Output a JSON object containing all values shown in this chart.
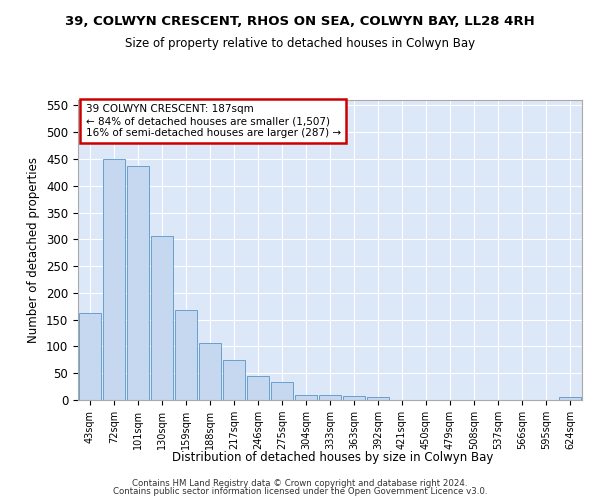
{
  "title": "39, COLWYN CRESCENT, RHOS ON SEA, COLWYN BAY, LL28 4RH",
  "subtitle": "Size of property relative to detached houses in Colwyn Bay",
  "xlabel": "Distribution of detached houses by size in Colwyn Bay",
  "ylabel": "Number of detached properties",
  "categories": [
    "43sqm",
    "72sqm",
    "101sqm",
    "130sqm",
    "159sqm",
    "188sqm",
    "217sqm",
    "246sqm",
    "275sqm",
    "304sqm",
    "333sqm",
    "363sqm",
    "392sqm",
    "421sqm",
    "450sqm",
    "479sqm",
    "508sqm",
    "537sqm",
    "566sqm",
    "595sqm",
    "624sqm"
  ],
  "values": [
    163,
    450,
    436,
    307,
    168,
    106,
    74,
    45,
    33,
    10,
    9,
    8,
    5,
    0,
    0,
    0,
    0,
    0,
    0,
    0,
    5
  ],
  "bar_color": "#c5d8f0",
  "bar_edge_color": "#6aa0cc",
  "annotation_title": "39 COLWYN CRESCENT: 187sqm",
  "annotation_line1": "← 84% of detached houses are smaller (1,507)",
  "annotation_line2": "16% of semi-detached houses are larger (287) →",
  "annotation_box_color": "#ffffff",
  "annotation_box_edge_color": "#cc0000",
  "ylim": [
    0,
    560
  ],
  "yticks": [
    0,
    50,
    100,
    150,
    200,
    250,
    300,
    350,
    400,
    450,
    500,
    550
  ],
  "plot_bg_color": "#dce8f8",
  "fig_bg_color": "#ffffff",
  "grid_color": "#ffffff",
  "footer1": "Contains HM Land Registry data © Crown copyright and database right 2024.",
  "footer2": "Contains public sector information licensed under the Open Government Licence v3.0."
}
